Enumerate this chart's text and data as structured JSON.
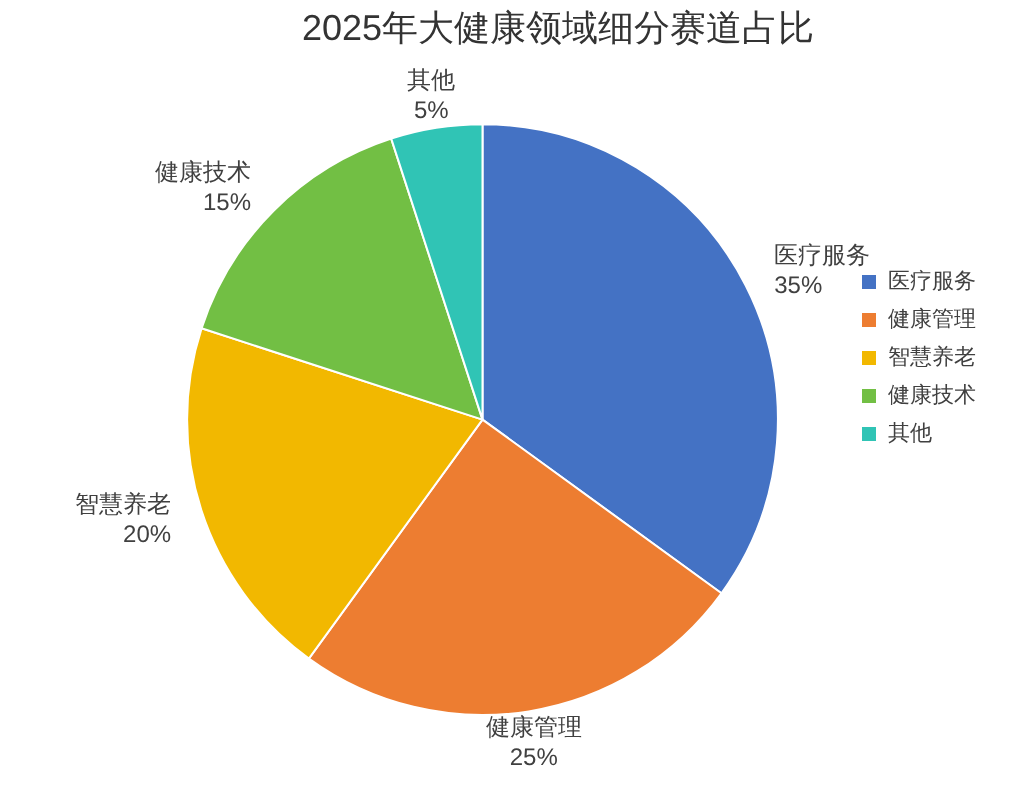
{
  "chart_data": {
    "type": "pie",
    "title": "2025年大健康领域细分赛道占比",
    "categories": [
      "医疗服务",
      "健康管理",
      "智慧养老",
      "健康技术",
      "其他"
    ],
    "values": [
      35,
      25,
      20,
      15,
      5
    ],
    "colors": [
      "#4472c4",
      "#ed7d31",
      "#f2b800",
      "#72bf44",
      "#30c4b5"
    ],
    "value_labels": [
      "35%",
      "25%",
      "20%",
      "15%",
      "5%"
    ],
    "legend": "right"
  }
}
